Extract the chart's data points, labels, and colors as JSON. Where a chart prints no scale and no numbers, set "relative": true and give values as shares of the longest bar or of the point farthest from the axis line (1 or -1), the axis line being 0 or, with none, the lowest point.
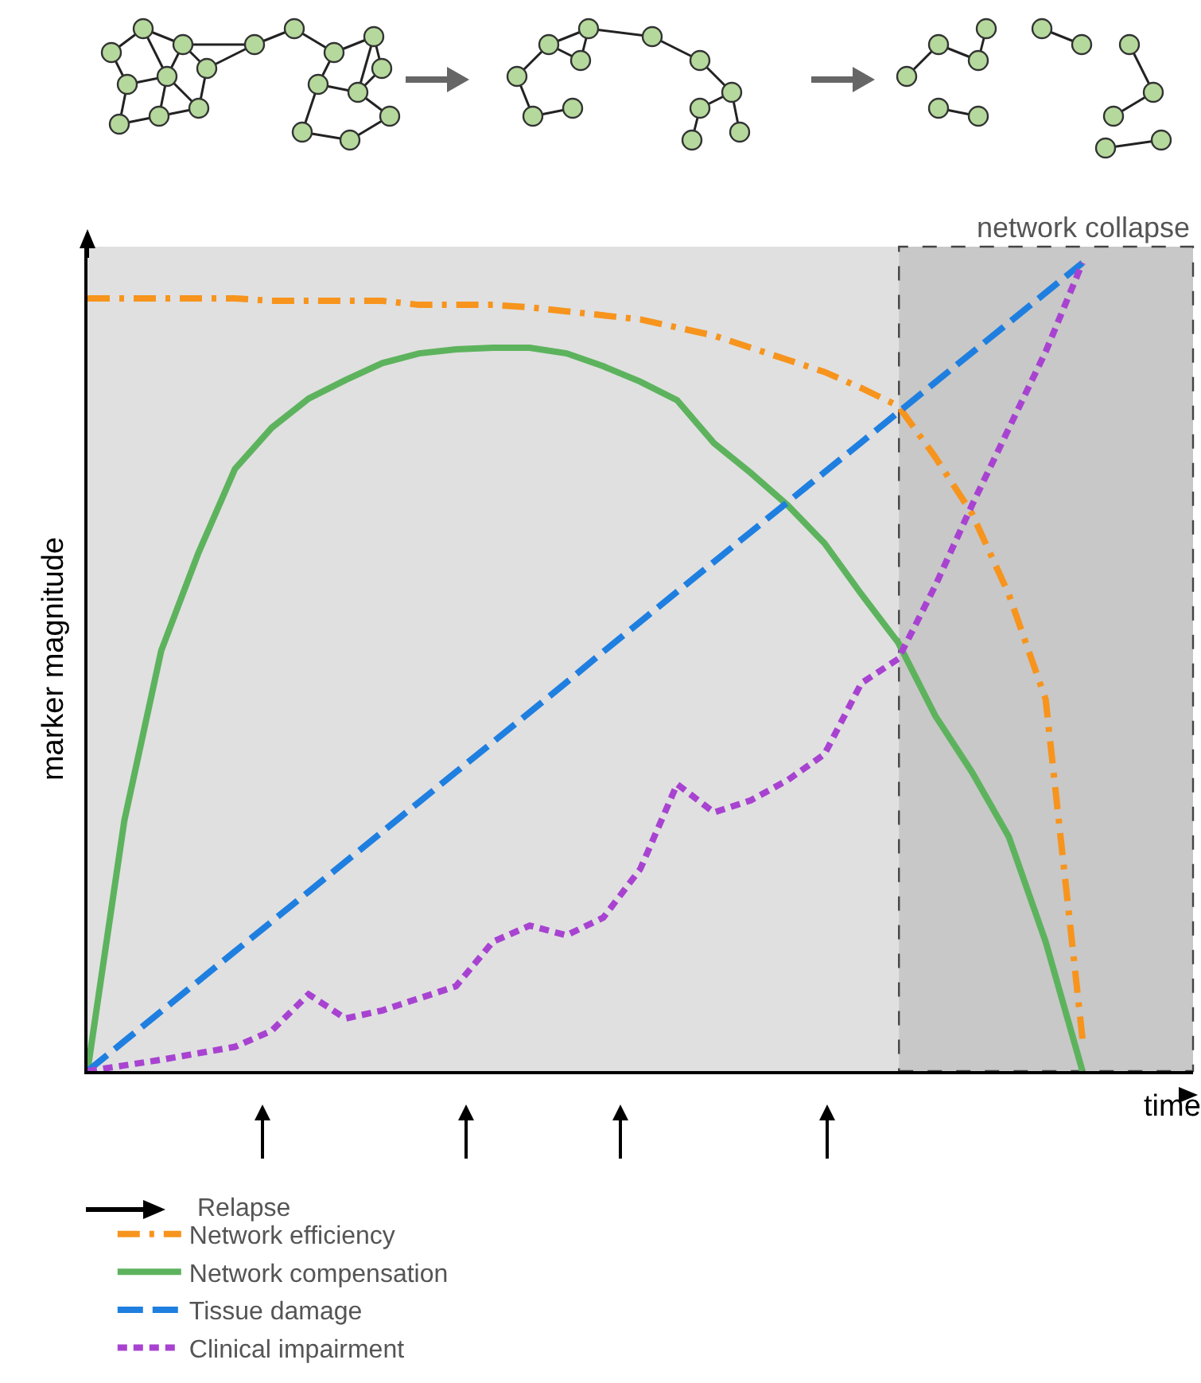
{
  "chart_data": {
    "type": "line",
    "relative": true,
    "ylabel": "marker magnitude",
    "xlabel": "time",
    "grid": false,
    "legend": "bottom",
    "marker": "none",
    "categories": [
      null,
      null,
      null,
      null,
      null,
      null,
      null,
      null,
      null,
      null,
      null,
      null,
      null,
      null,
      null,
      null,
      null,
      null,
      null,
      null,
      null,
      null,
      null,
      null,
      null,
      null,
      null,
      null,
      null,
      null,
      null
    ],
    "series": [
      {
        "name": "Network efficiency",
        "color": "#f7941d",
        "line_style": "dashdot",
        "values": [
          0.956,
          0.956,
          0.956,
          0.956,
          0.956,
          0.953,
          0.953,
          0.953,
          0.953,
          0.948,
          0.948,
          0.948,
          0.945,
          0.94,
          0.935,
          0.93,
          0.92,
          0.91,
          0.895,
          0.88,
          0.865,
          0.845,
          0.823,
          0.76,
          0.69,
          0.59,
          0.46,
          0.04,
          null,
          null,
          null
        ]
      },
      {
        "name": "Network compensation",
        "color": "#5db35d",
        "line_style": "solid",
        "values": [
          0,
          0.31,
          0.52,
          0.64,
          0.745,
          0.796,
          0.832,
          0.855,
          0.876,
          0.888,
          0.893,
          0.895,
          0.895,
          0.888,
          0.872,
          0.853,
          0.83,
          0.777,
          0.74,
          0.7,
          0.653,
          0.59,
          0.53,
          0.44,
          0.37,
          0.29,
          0.16,
          0,
          null,
          null,
          null
        ]
      },
      {
        "name": "Tissue damage",
        "color": "#1f7fe0",
        "line_style": "dashed",
        "values": [
          0,
          0.037,
          0.074,
          0.111,
          0.148,
          0.185,
          0.222,
          0.259,
          0.296,
          0.333,
          0.37,
          0.407,
          0.444,
          0.481,
          0.519,
          0.556,
          0.593,
          0.63,
          0.667,
          0.704,
          0.741,
          0.778,
          0.815,
          0.852,
          0.889,
          0.926,
          0.963,
          1,
          null,
          null,
          null
        ]
      },
      {
        "name": "Clinical impairment",
        "color": "#a843d1",
        "line_style": "dotted",
        "values": [
          0,
          0.007,
          0.014,
          0.022,
          0.03,
          0.05,
          0.095,
          0.065,
          0.075,
          0.09,
          0.105,
          0.16,
          0.18,
          0.168,
          0.19,
          0.25,
          0.355,
          0.32,
          0.335,
          0.36,
          0.392,
          0.48,
          0.51,
          0.6,
          0.7,
          0.795,
          0.89,
          1,
          null,
          null,
          null
        ]
      }
    ],
    "annotations": [
      "Relapse",
      "network collapse"
    ]
  }
}
